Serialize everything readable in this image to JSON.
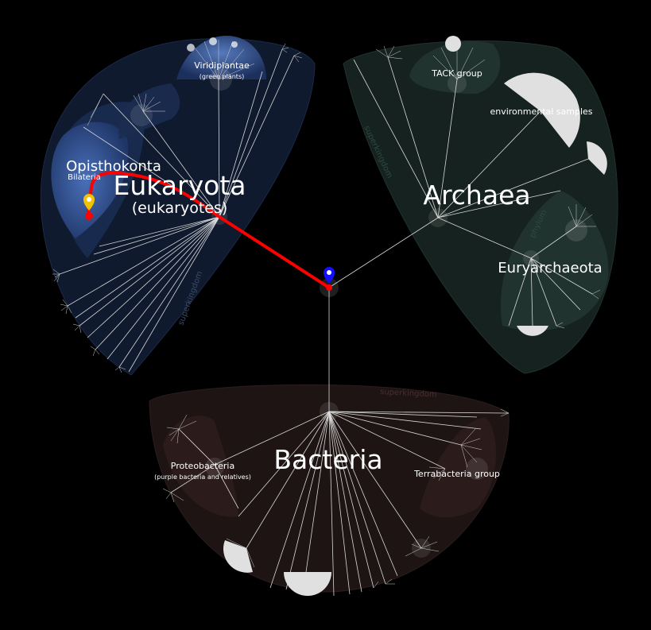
{
  "labels": {
    "eukaryota": "Eukaryota",
    "eukaryota_common": "(eukaryotes)",
    "opisthokonta": "Opisthokonta",
    "bilateria": "Bilateria",
    "viridiplantae": "Viridiplantae",
    "viridiplantae_common": "(green plants)",
    "archaea": "Archaea",
    "tack": "TACK group",
    "env_samples": "environmental samples",
    "euryarchaeota": "Euryarchaeota",
    "bacteria": "Bacteria",
    "proteobacteria": "Proteobacteria",
    "proteobacteria_common": "(purple bacteria and relatives)",
    "terrabacteria": "Terrabacteria group"
  },
  "rank_labels": {
    "superkingdom_euk": "superkingdom",
    "superkingdom_arch": "superkingdom",
    "superkingdom_bact": "superkingdom",
    "phylum_eury": "phylum"
  },
  "colors": {
    "background": "#000000",
    "eukaryota_region": "#0f1a2e",
    "archaea_region": "#16221f",
    "bacteria_region": "#1e1414",
    "path": "#ff0000",
    "root_marker": "#1010ff",
    "target_marker": "#f2c200",
    "branch": "#d8d8d8"
  },
  "markers": {
    "root": "root-location",
    "target": "selected-taxon-location"
  }
}
